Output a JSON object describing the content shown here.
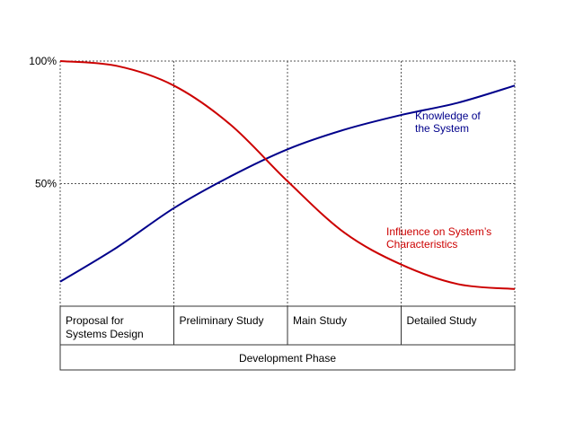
{
  "chart_data": {
    "type": "line",
    "title": "",
    "xlabel": "Development Phase",
    "ylabel": "",
    "ylim": [
      0,
      100
    ],
    "yticks": [
      {
        "value": 100,
        "label": "100%"
      },
      {
        "value": 50,
        "label": "50%"
      }
    ],
    "grid": true,
    "phases": [
      [
        "Proposal for",
        "Systems Design"
      ],
      [
        "Preliminary Study"
      ],
      [
        "Main Study"
      ],
      [
        "Detailed Study"
      ]
    ],
    "x_range": [
      0,
      4
    ],
    "series": [
      {
        "name": "Knowledge of the System",
        "label_lines": [
          "Knowledge of",
          "the System"
        ],
        "color": "#00008b",
        "x": [
          0,
          0.5,
          1,
          1.5,
          2,
          2.5,
          3,
          3.5,
          4
        ],
        "values": [
          10,
          24,
          40,
          53,
          64,
          72,
          78,
          83,
          90
        ]
      },
      {
        "name": "Influence on System's Characteristics",
        "label_lines": [
          "Influence on System’s",
          "Characteristics"
        ],
        "color": "#cc0000",
        "x": [
          0,
          0.5,
          1,
          1.5,
          2,
          2.5,
          3,
          3.5,
          4
        ],
        "values": [
          100,
          98,
          90,
          74,
          51,
          30,
          17,
          9,
          7
        ]
      }
    ]
  }
}
